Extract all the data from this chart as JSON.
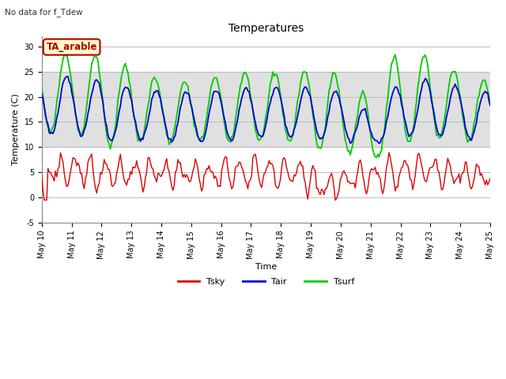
{
  "title": "Temperatures",
  "subtitle": "No data for f_Tdew",
  "xlabel": "Time",
  "ylabel": "Temperature (C)",
  "ylim": [
    -5,
    32
  ],
  "ytick_values": [
    -5,
    0,
    5,
    10,
    15,
    20,
    25,
    30
  ],
  "xtick_labels": [
    "May 10",
    "May 11",
    "May 12",
    "May 13",
    "May 14",
    "May 15",
    "May 16",
    "May 17",
    "May 18",
    "May 19",
    "May 20",
    "May 21",
    "May 22",
    "May 23",
    "May 24",
    "May 25"
  ],
  "legend_entries": [
    "Tsky",
    "Tair",
    "Tsurf"
  ],
  "legend_colors": [
    "#dd0000",
    "#0000dd",
    "#00cc00"
  ],
  "annotation_box": "TA_arable",
  "annotation_box_bg": "#ffffcc",
  "annotation_box_border": "#aa0000",
  "background_band": {
    "ymin": 10,
    "ymax": 25,
    "color": "#e0e0e0"
  },
  "tsky_color": "#dd0000",
  "tair_color": "#0000dd",
  "tsurf_color": "#00cc00",
  "grid_color": "#bbbbbb",
  "title_fontsize": 10,
  "axis_label_fontsize": 8,
  "tick_fontsize": 7,
  "legend_fontsize": 8
}
